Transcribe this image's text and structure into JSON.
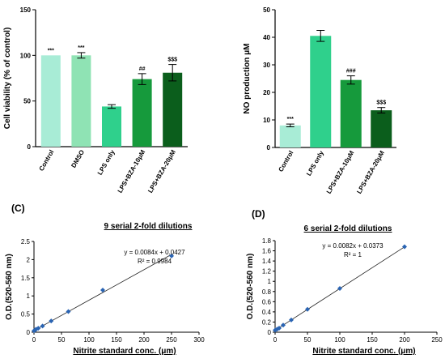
{
  "chart_data": [
    {
      "type": "bar",
      "categories": [
        "Control",
        "DMSO",
        "LPS only",
        "LPS+BZA-10μM",
        "LPS+BZA-20μM"
      ],
      "values": [
        100,
        100,
        44,
        74,
        81
      ],
      "errors": [
        0,
        3,
        2,
        6,
        9
      ],
      "annotations": [
        "***",
        "***",
        "",
        "##",
        "$$$"
      ],
      "colors": [
        "#a8ecd6",
        "#8fe3b4",
        "#2fd08c",
        "#169a3c",
        "#0b5e1c"
      ],
      "ylabel": "Cell viability (% of control)",
      "ylim": [
        0,
        150
      ],
      "yticks": [
        "0",
        "50",
        "100",
        "150"
      ]
    },
    {
      "type": "bar",
      "categories": [
        "Control",
        "LPS only",
        "LPS+BZA-10μM",
        "LPS+BZA-20μM"
      ],
      "values": [
        8,
        40.5,
        24.5,
        13.5
      ],
      "errors": [
        0.5,
        2,
        1.5,
        1
      ],
      "annotations": [
        "***",
        "",
        "###",
        "$$$"
      ],
      "colors": [
        "#a8ecd6",
        "#2fd08c",
        "#169a3c",
        "#0b5e1c"
      ],
      "ylabel": "NO production μM",
      "ylim": [
        0,
        50
      ],
      "yticks": [
        "0",
        "10",
        "20",
        "30",
        "40",
        "50"
      ]
    },
    {
      "type": "scatter",
      "panel_label": "(C)",
      "title": "9 serial 2-fold dilutions",
      "x": [
        0,
        1.95,
        3.9,
        7.8,
        15.6,
        31.25,
        62.5,
        125,
        250
      ],
      "y": [
        0.04,
        0.06,
        0.08,
        0.11,
        0.17,
        0.31,
        0.57,
        1.16,
        2.1
      ],
      "fit": {
        "slope": 0.0084,
        "intercept": 0.0427
      },
      "equation": "y = 0.0084x + 0.0427",
      "r2": "R² = 0.9984",
      "xlabel": "Nitrite standard conc. (μm)",
      "ylabel": "O.D.(520-560 nm)",
      "xlim": [
        0,
        300
      ],
      "ylim": [
        0,
        2.5
      ],
      "xticks": [
        "0",
        "50",
        "100",
        "150",
        "200",
        "250",
        "300"
      ],
      "yticks": [
        "0",
        "0.5",
        "1",
        "1.5",
        "2",
        "2.5"
      ]
    },
    {
      "type": "scatter",
      "panel_label": "(D)",
      "title": "6 serial 2-fold dilutions",
      "x": [
        0,
        3.125,
        6.25,
        12.5,
        25,
        50,
        100,
        200
      ],
      "y": [
        0.04,
        0.06,
        0.08,
        0.14,
        0.24,
        0.45,
        0.86,
        1.68
      ],
      "fit": {
        "slope": 0.0082,
        "intercept": 0.0373
      },
      "equation": "y = 0.0082x + 0.0373",
      "r2": "R² = 1",
      "xlabel": "Nitrite standard conc. (μm)",
      "ylabel": "O.D.(520-560 nm)",
      "xlim": [
        0,
        250
      ],
      "ylim": [
        0,
        1.8
      ],
      "xticks": [
        "0",
        "50",
        "100",
        "150",
        "200",
        "250"
      ],
      "yticks": [
        "0",
        "0.2",
        "0.4",
        "0.6",
        "0.8",
        "1",
        "1.2",
        "1.4",
        "1.6",
        "1.8"
      ]
    }
  ]
}
